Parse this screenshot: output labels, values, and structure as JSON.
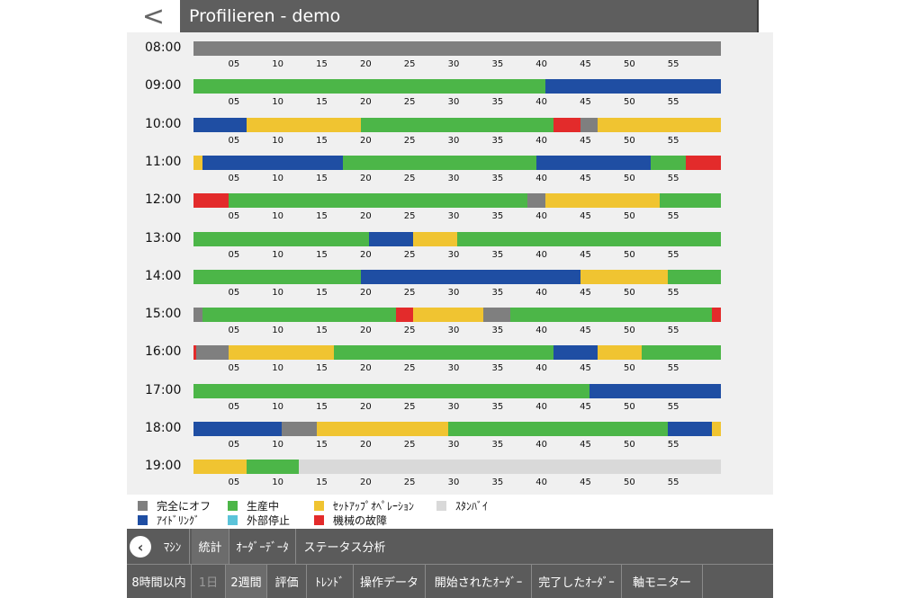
{
  "header": {
    "back_icon": "<",
    "title": "Profilieren - demo"
  },
  "colors": {
    "off": "#7f7f7f",
    "production": "#4cb648",
    "setup": "#f0c431",
    "standby": "#d9d9d9",
    "idle": "#1f4ea3",
    "external_stop": "#5bc3d9",
    "fault": "#e32b2b"
  },
  "ticks": [
    "05",
    "10",
    "15",
    "20",
    "25",
    "30",
    "35",
    "40",
    "45",
    "50",
    "55"
  ],
  "chart_data": {
    "type": "timeline",
    "x_unit": "minute",
    "xlim": [
      0,
      60
    ],
    "rows": [
      {
        "hour": "08:00",
        "segments": [
          [
            "off",
            0,
            60
          ]
        ]
      },
      {
        "hour": "09:00",
        "segments": [
          [
            "production",
            0,
            40
          ],
          [
            "idle",
            40,
            60
          ]
        ]
      },
      {
        "hour": "10:00",
        "segments": [
          [
            "idle",
            0,
            6
          ],
          [
            "setup",
            6,
            19
          ],
          [
            "production",
            19,
            41
          ],
          [
            "fault",
            41,
            44
          ],
          [
            "off",
            44,
            46
          ],
          [
            "setup",
            46,
            60
          ]
        ]
      },
      {
        "hour": "11:00",
        "segments": [
          [
            "setup",
            0,
            1
          ],
          [
            "idle",
            1,
            17
          ],
          [
            "production",
            17,
            39
          ],
          [
            "idle",
            39,
            52
          ],
          [
            "production",
            52,
            56
          ],
          [
            "fault",
            56,
            60
          ]
        ]
      },
      {
        "hour": "12:00",
        "segments": [
          [
            "fault",
            0,
            4
          ],
          [
            "production",
            4,
            38
          ],
          [
            "off",
            38,
            40
          ],
          [
            "setup",
            40,
            53
          ],
          [
            "production",
            53,
            60
          ]
        ]
      },
      {
        "hour": "13:00",
        "segments": [
          [
            "production",
            0,
            20
          ],
          [
            "idle",
            20,
            25
          ],
          [
            "setup",
            25,
            30
          ],
          [
            "production",
            30,
            60
          ]
        ]
      },
      {
        "hour": "14:00",
        "segments": [
          [
            "production",
            0,
            19
          ],
          [
            "idle",
            19,
            44
          ],
          [
            "setup",
            44,
            54
          ],
          [
            "production",
            54,
            60
          ]
        ]
      },
      {
        "hour": "15:00",
        "segments": [
          [
            "off",
            0,
            1
          ],
          [
            "production",
            1,
            23
          ],
          [
            "fault",
            23,
            25
          ],
          [
            "setup",
            25,
            33
          ],
          [
            "off",
            33,
            36
          ],
          [
            "production",
            36,
            59
          ],
          [
            "fault",
            59,
            60
          ]
        ]
      },
      {
        "hour": "16:00",
        "segments": [
          [
            "fault",
            0,
            0.3
          ],
          [
            "off",
            0.3,
            4
          ],
          [
            "setup",
            4,
            16
          ],
          [
            "production",
            16,
            41
          ],
          [
            "idle",
            41,
            46
          ],
          [
            "setup",
            46,
            51
          ],
          [
            "production",
            51,
            60
          ]
        ]
      },
      {
        "hour": "17:00",
        "segments": [
          [
            "production",
            0,
            45
          ],
          [
            "idle",
            45,
            60
          ]
        ]
      },
      {
        "hour": "18:00",
        "segments": [
          [
            "idle",
            0,
            10
          ],
          [
            "off",
            10,
            14
          ],
          [
            "setup",
            14,
            29
          ],
          [
            "production",
            29,
            54
          ],
          [
            "idle",
            54,
            59
          ],
          [
            "setup",
            59,
            60
          ]
        ]
      },
      {
        "hour": "19:00",
        "segments": [
          [
            "setup",
            0,
            6
          ],
          [
            "production",
            6,
            12
          ],
          [
            "standby",
            12,
            60
          ]
        ]
      }
    ]
  },
  "legend": [
    {
      "key": "off",
      "label": "完全にオフ"
    },
    {
      "key": "production",
      "label": "生産中"
    },
    {
      "key": "setup",
      "label": "ｾｯﾄｱｯﾌﾟｵﾍﾟﾚｰｼｮﾝ"
    },
    {
      "key": "standby",
      "label": "ｽﾀﾝﾊﾞｲ"
    },
    {
      "key": "idle",
      "label": "ｱｲﾄﾞﾘﾝｸﾞ"
    },
    {
      "key": "external_stop",
      "label": "外部停止"
    },
    {
      "key": "fault",
      "label": "機械の故障"
    }
  ],
  "tabs_row1": [
    {
      "label": "ﾏｼﾝ",
      "active": false
    },
    {
      "label": "統計",
      "active": true
    },
    {
      "label": "ｵｰﾀﾞｰﾃﾞｰﾀ",
      "active": false
    },
    {
      "label": "ステータス分析",
      "active": false
    }
  ],
  "tabs_row2": [
    {
      "label": "8時間以内",
      "active": false
    },
    {
      "label": "1日",
      "active": false,
      "dim": true
    },
    {
      "label": "2週間",
      "active": true
    },
    {
      "label": "評価",
      "active": false
    },
    {
      "label": "ﾄﾚﾝﾄﾞ",
      "active": false
    },
    {
      "label": "操作データ",
      "active": false
    },
    {
      "label": "開始されたｵｰﾀﾞｰ",
      "active": false
    },
    {
      "label": "完了したｵｰﾀﾞｰ",
      "active": false
    },
    {
      "label": "軸モニター",
      "active": false
    }
  ]
}
